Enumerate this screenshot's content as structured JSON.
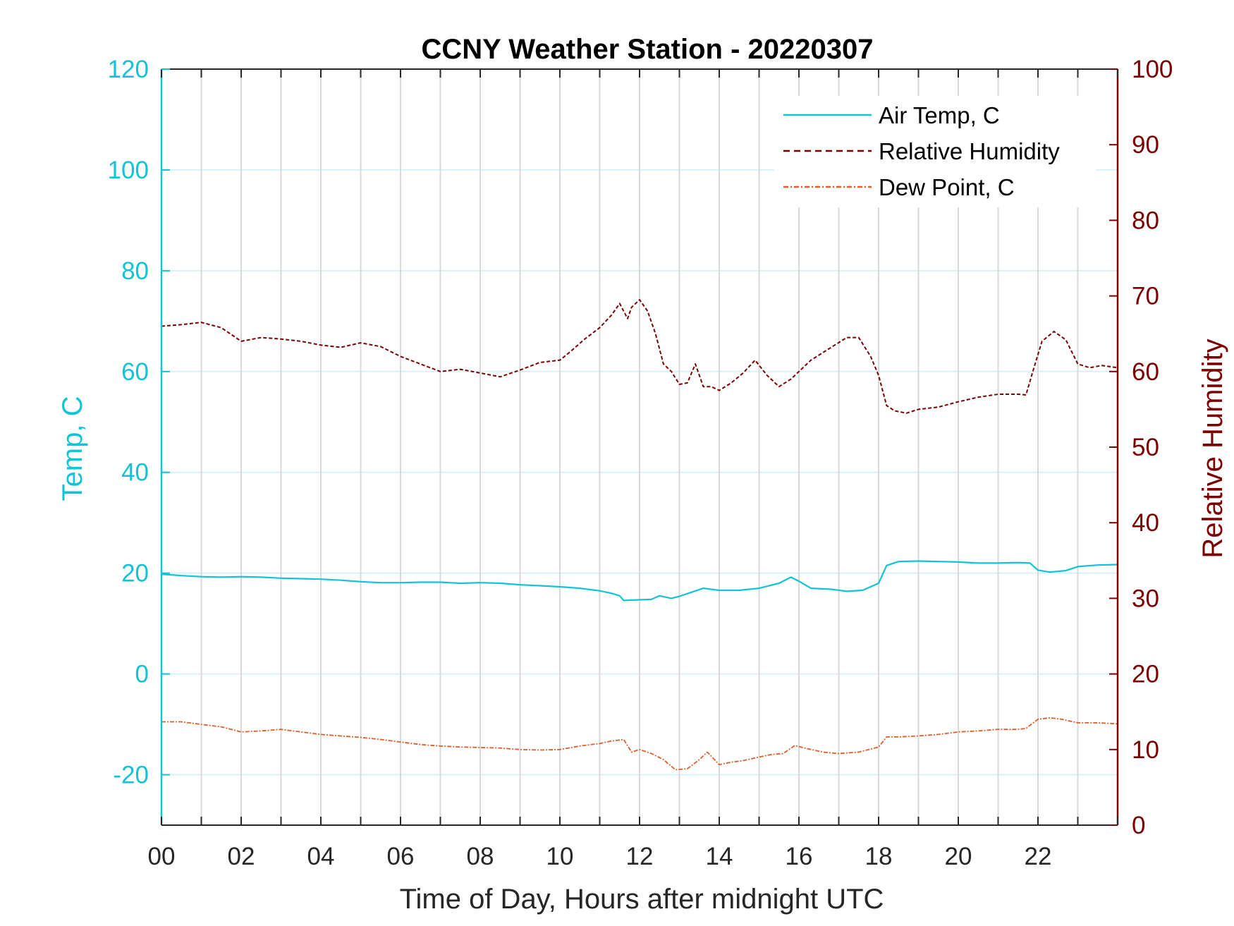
{
  "chart_data": {
    "type": "line",
    "title": "CCNY Weather Station - 20220307",
    "xlabel": "Time of Day, Hours after midnight UTC",
    "ylabel_left": "Temp, C",
    "ylabel_right": "Relative Humidity",
    "xlim": [
      0,
      24
    ],
    "ylim_left": [
      -30,
      120
    ],
    "ylim_right": [
      0,
      100
    ],
    "x_ticks": [
      0,
      2,
      4,
      6,
      8,
      10,
      12,
      14,
      16,
      18,
      20,
      22
    ],
    "x_tick_labels": [
      "00",
      "02",
      "04",
      "06",
      "08",
      "10",
      "12",
      "14",
      "16",
      "18",
      "20",
      "22"
    ],
    "y_left_ticks": [
      -20,
      0,
      20,
      40,
      60,
      80,
      100,
      120
    ],
    "y_left_tick_labels": [
      "-20",
      "0",
      "20",
      "40",
      "60",
      "80",
      "100",
      "120"
    ],
    "y_right_ticks": [
      0,
      10,
      20,
      30,
      40,
      50,
      60,
      70,
      80,
      90,
      100
    ],
    "y_right_tick_labels": [
      "0",
      "10",
      "20",
      "30",
      "40",
      "50",
      "60",
      "70",
      "80",
      "90",
      "100"
    ],
    "grid": "vertical lines every hour; horizontal lines at left-axis ticks",
    "legend_position": "top-right",
    "colors": {
      "air_temp": "#12c3d6",
      "relative_humidity": "#7a0000",
      "dew_point": "#d9602a",
      "left_axis": "#12c3d6",
      "right_axis": "#7a0000",
      "vgrid": "#d9d9d9",
      "hgrid": "#d6f2f6"
    },
    "series": [
      {
        "name": "Air Temp, C",
        "axis": "left",
        "style": "solid",
        "x": [
          0,
          0.5,
          1,
          1.5,
          2,
          2.5,
          3,
          3.5,
          4,
          4.5,
          5,
          5.5,
          6,
          6.5,
          7,
          7.5,
          8,
          8.5,
          9,
          9.5,
          10,
          10.5,
          11,
          11.3,
          11.5,
          11.6,
          12,
          12.3,
          12.5,
          12.8,
          13,
          13.3,
          13.6,
          14,
          14.5,
          15,
          15.5,
          15.8,
          16,
          16.3,
          16.8,
          17.2,
          17.6,
          18,
          18.2,
          18.5,
          19,
          19.5,
          20,
          20.5,
          21,
          21.5,
          21.8,
          22,
          22.3,
          22.7,
          23,
          23.5,
          24
        ],
        "y": [
          19.8,
          19.5,
          19.3,
          19.2,
          19.3,
          19.2,
          19.0,
          18.9,
          18.8,
          18.6,
          18.3,
          18.1,
          18.1,
          18.2,
          18.2,
          18.0,
          18.1,
          18.0,
          17.7,
          17.5,
          17.3,
          17.0,
          16.5,
          16.0,
          15.5,
          14.6,
          14.7,
          14.8,
          15.5,
          15.0,
          15.4,
          16.2,
          17.0,
          16.6,
          16.6,
          17.0,
          18.0,
          19.2,
          18.4,
          17.0,
          16.8,
          16.4,
          16.6,
          18.0,
          21.5,
          22.3,
          22.4,
          22.3,
          22.2,
          22.0,
          22.0,
          22.1,
          22.0,
          20.6,
          20.2,
          20.5,
          21.3,
          21.6,
          21.7
        ]
      },
      {
        "name": "Relative Humidity",
        "axis": "right",
        "style": "dashed",
        "x": [
          0,
          0.5,
          1,
          1.5,
          2,
          2.5,
          3,
          3.5,
          4,
          4.5,
          5,
          5.5,
          6,
          6.5,
          7,
          7.5,
          8,
          8.5,
          9,
          9.5,
          10,
          10.3,
          10.6,
          11,
          11.3,
          11.5,
          11.7,
          11.8,
          12,
          12.2,
          12.4,
          12.6,
          12.8,
          13,
          13.2,
          13.4,
          13.6,
          13.8,
          14,
          14.3,
          14.6,
          14.9,
          15.2,
          15.5,
          15.8,
          16,
          16.3,
          16.6,
          16.9,
          17.2,
          17.5,
          17.8,
          18,
          18.2,
          18.4,
          18.7,
          19,
          19.5,
          20,
          20.5,
          21,
          21.5,
          21.7,
          21.9,
          22.1,
          22.4,
          22.7,
          23,
          23.3,
          23.6,
          24
        ],
        "y": [
          66,
          66.2,
          66.5,
          65.8,
          64.0,
          64.5,
          64.3,
          64.0,
          63.5,
          63.2,
          63.8,
          63.3,
          62.0,
          61.0,
          60.0,
          60.3,
          59.8,
          59.3,
          60.2,
          61.2,
          61.5,
          62.8,
          64.2,
          65.8,
          67.5,
          69.0,
          67.0,
          68.5,
          69.5,
          68.0,
          65.0,
          61.0,
          60.0,
          58.3,
          58.5,
          61.0,
          58.0,
          58.0,
          57.5,
          58.5,
          59.8,
          61.5,
          59.5,
          58.0,
          59.0,
          60.0,
          61.5,
          62.5,
          63.5,
          64.5,
          64.5,
          62.0,
          59.5,
          55.5,
          54.8,
          54.5,
          55.0,
          55.3,
          56.0,
          56.6,
          57.0,
          57.0,
          56.9,
          60.5,
          64.0,
          65.3,
          64.2,
          61.0,
          60.5,
          60.8,
          60.5
        ]
      },
      {
        "name": "Dew Point, C",
        "axis": "left",
        "style": "dash-dot",
        "x": [
          0,
          0.5,
          1,
          1.5,
          2,
          2.5,
          3,
          3.5,
          4,
          4.5,
          5,
          5.5,
          6,
          6.5,
          7,
          7.5,
          8,
          8.5,
          9,
          9.5,
          10,
          10.5,
          11,
          11.3,
          11.6,
          11.8,
          12,
          12.3,
          12.6,
          12.9,
          13.2,
          13.5,
          13.7,
          14,
          14.3,
          14.6,
          15,
          15.3,
          15.6,
          15.9,
          16.2,
          16.6,
          17,
          17.5,
          18,
          18.2,
          18.5,
          19,
          19.5,
          20,
          20.5,
          21,
          21.5,
          21.7,
          22,
          22.3,
          22.6,
          23,
          23.5,
          24
        ],
        "y": [
          -9.5,
          -9.5,
          -10.0,
          -10.5,
          -11.5,
          -11.3,
          -11.0,
          -11.5,
          -12.0,
          -12.3,
          -12.6,
          -13.0,
          -13.5,
          -14.0,
          -14.3,
          -14.5,
          -14.6,
          -14.7,
          -15.0,
          -15.1,
          -15.0,
          -14.3,
          -13.8,
          -13.3,
          -13.0,
          -15.5,
          -15.0,
          -15.8,
          -17.0,
          -19.0,
          -18.8,
          -17.0,
          -15.5,
          -18.0,
          -17.5,
          -17.2,
          -16.5,
          -16.0,
          -15.8,
          -14.2,
          -14.8,
          -15.5,
          -15.8,
          -15.5,
          -14.5,
          -12.5,
          -12.5,
          -12.3,
          -12.0,
          -11.5,
          -11.3,
          -11.0,
          -11.0,
          -10.8,
          -9.0,
          -8.7,
          -9.0,
          -9.7,
          -9.7,
          -9.9
        ]
      }
    ]
  }
}
